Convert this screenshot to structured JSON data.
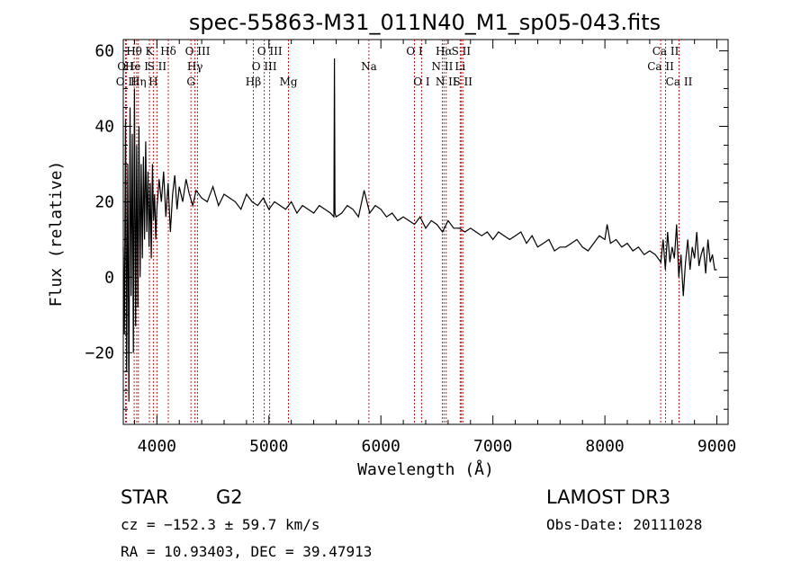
{
  "chart_data": {
    "type": "line",
    "title": "spec-55863-M31_011N40_M1_sp05-043.fits",
    "xlabel": "Wavelength (Å)",
    "ylabel": "Flux (relative)",
    "xlim": [
      3700,
      9100
    ],
    "ylim": [
      -39,
      63
    ],
    "x_ticks": [
      4000,
      5000,
      6000,
      7000,
      8000,
      9000
    ],
    "y_ticks": [
      -20,
      0,
      20,
      40,
      60
    ],
    "series": [
      {
        "name": "flux",
        "x": [
          3700,
          3710,
          3720,
          3730,
          3740,
          3750,
          3760,
          3770,
          3780,
          3790,
          3800,
          3810,
          3820,
          3830,
          3840,
          3850,
          3860,
          3870,
          3880,
          3890,
          3900,
          3910,
          3920,
          3930,
          3940,
          3950,
          3960,
          3970,
          3980,
          3990,
          4000,
          4020,
          4040,
          4060,
          4080,
          4100,
          4120,
          4140,
          4160,
          4180,
          4200,
          4230,
          4260,
          4290,
          4320,
          4350,
          4400,
          4450,
          4500,
          4550,
          4600,
          4650,
          4700,
          4750,
          4800,
          4850,
          4900,
          4950,
          5000,
          5050,
          5100,
          5150,
          5200,
          5250,
          5300,
          5350,
          5400,
          5450,
          5500,
          5550,
          5580,
          5585,
          5590,
          5600,
          5650,
          5700,
          5750,
          5800,
          5850,
          5900,
          5950,
          6000,
          6050,
          6100,
          6150,
          6200,
          6250,
          6300,
          6350,
          6400,
          6450,
          6500,
          6550,
          6600,
          6650,
          6700,
          6750,
          6800,
          6850,
          6900,
          6950,
          7000,
          7050,
          7100,
          7150,
          7200,
          7250,
          7300,
          7350,
          7400,
          7450,
          7500,
          7550,
          7600,
          7650,
          7700,
          7750,
          7800,
          7850,
          7900,
          7950,
          8000,
          8020,
          8050,
          8100,
          8150,
          8200,
          8250,
          8300,
          8350,
          8400,
          8450,
          8500,
          8520,
          8540,
          8560,
          8580,
          8600,
          8620,
          8640,
          8660,
          8680,
          8700,
          8720,
          8740,
          8760,
          8780,
          8800,
          8820,
          8840,
          8860,
          8880,
          8900,
          8920,
          8940,
          8960,
          8980,
          9000
        ],
        "y": [
          8,
          -15,
          42,
          -25,
          30,
          -33,
          45,
          -5,
          38,
          -20,
          50,
          -13,
          35,
          -8,
          40,
          0,
          30,
          5,
          32,
          10,
          36,
          12,
          28,
          8,
          25,
          5,
          30,
          15,
          22,
          10,
          18,
          26,
          20,
          28,
          16,
          25,
          12,
          22,
          27,
          18,
          24,
          20,
          26,
          22,
          19,
          23,
          21,
          20,
          24,
          19,
          22,
          21,
          20,
          18,
          22,
          20,
          19,
          21,
          18,
          20,
          19,
          18,
          20,
          17,
          19,
          18,
          17,
          19,
          18,
          17,
          16,
          58,
          17,
          16,
          17,
          19,
          18,
          16,
          23,
          17,
          19,
          18,
          16,
          17,
          15,
          16,
          15,
          14,
          16,
          13,
          15,
          14,
          12,
          15,
          13,
          13,
          12,
          13,
          12,
          11,
          12,
          10,
          12,
          11,
          10,
          11,
          12,
          9,
          11,
          8,
          9,
          10,
          7,
          8,
          8,
          9,
          10,
          8,
          7,
          9,
          11,
          10,
          14,
          9,
          10,
          8,
          9,
          7,
          8,
          6,
          7,
          6,
          4,
          10,
          2,
          12,
          4,
          8,
          5,
          14,
          0,
          6,
          -5,
          4,
          10,
          2,
          8,
          5,
          12,
          3,
          6,
          8,
          1,
          10,
          4,
          6,
          2,
          2
        ]
      }
    ],
    "lines": [
      {
        "label": "O II",
        "wavelength": 3727,
        "row": 3
      },
      {
        "label": "O I",
        "wavelength": 3720,
        "row": 2
      },
      {
        "label": "Hθ",
        "wavelength": 3797,
        "row": 1
      },
      {
        "label": "He I",
        "wavelength": 3820,
        "row": 2
      },
      {
        "label": "Hη",
        "wavelength": 3835,
        "row": 3
      },
      {
        "label": "K",
        "wavelength": 3933,
        "row": 1
      },
      {
        "label": "S II",
        "wavelength": 4000,
        "row": 2
      },
      {
        "label": "H",
        "wavelength": 3968,
        "row": 3
      },
      {
        "label": "Hδ",
        "wavelength": 4102,
        "row": 1
      },
      {
        "label": "O III",
        "wavelength": 4363,
        "row": 1
      },
      {
        "label": "Hγ",
        "wavelength": 4340,
        "row": 2
      },
      {
        "label": "G",
        "wavelength": 4304,
        "row": 3
      },
      {
        "label": "Hβ",
        "wavelength": 4861,
        "row": 3
      },
      {
        "label": "O III",
        "wavelength": 4959,
        "row": 2
      },
      {
        "label": "O III",
        "wavelength": 5007,
        "row": 1
      },
      {
        "label": "Mg",
        "wavelength": 5175,
        "row": 3
      },
      {
        "label": "Na",
        "wavelength": 5893,
        "row": 2
      },
      {
        "label": "O I",
        "wavelength": 6300,
        "row": 1
      },
      {
        "label": "O I",
        "wavelength": 6363,
        "row": 3
      },
      {
        "label": "N II",
        "wavelength": 6548,
        "row": 2
      },
      {
        "label": "Hα",
        "wavelength": 6563,
        "row": 1
      },
      {
        "label": "N II",
        "wavelength": 6583,
        "row": 3
      },
      {
        "label": "S II",
        "wavelength": 6716,
        "row": 1
      },
      {
        "label": "Li",
        "wavelength": 6708,
        "row": 2
      },
      {
        "label": "S II",
        "wavelength": 6731,
        "row": 3
      },
      {
        "label": "Ca II",
        "wavelength": 8498,
        "row": 2
      },
      {
        "label": "Ca II",
        "wavelength": 8542,
        "row": 1
      },
      {
        "label": "Ca II",
        "wavelength": 8662,
        "row": 3
      }
    ]
  },
  "info": {
    "class_label": "STAR",
    "subclass": "G2",
    "survey": "LAMOST DR3",
    "cz": "cz = −152.3 ± 59.7 km/s",
    "obs_date": "Obs-Date: 20111028",
    "coords": "RA =  10.93403, DEC =  39.47913"
  }
}
